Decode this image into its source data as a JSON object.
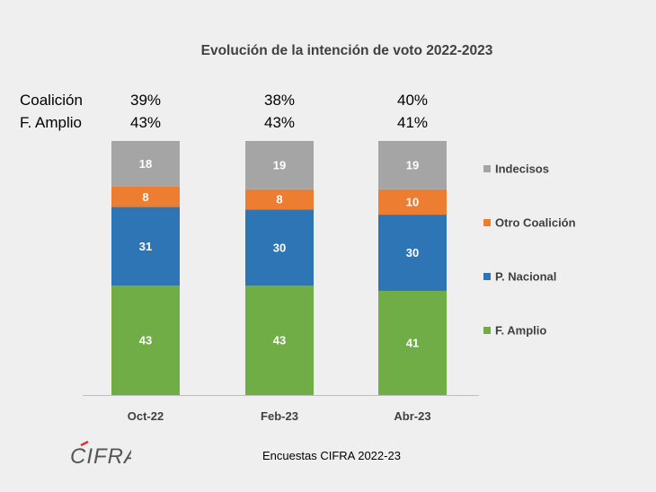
{
  "title": "Evolución de la intención de voto 2022-2023",
  "summary": {
    "rows": [
      {
        "label": "Coalición",
        "values": [
          "39%",
          "38%",
          "40%"
        ]
      },
      {
        "label": "F. Amplio",
        "values": [
          "43%",
          "43%",
          "41%"
        ]
      }
    ]
  },
  "footer": "Encuestas CIFRA 2022-23",
  "logo_text": "CIFRA",
  "chart_data": {
    "type": "bar",
    "stacked": true,
    "categories": [
      "Oct-22",
      "Feb-23",
      "Abr-23"
    ],
    "series": [
      {
        "name": "F. Amplio",
        "color": "#70ad47",
        "values": [
          43,
          43,
          41
        ]
      },
      {
        "name": "P. Nacional",
        "color": "#2e75b6",
        "values": [
          31,
          30,
          30
        ]
      },
      {
        "name": "Otro Coalición",
        "color": "#ed7d31",
        "values": [
          8,
          8,
          10
        ]
      },
      {
        "name": "Indecisos",
        "color": "#a5a5a5",
        "values": [
          18,
          19,
          19
        ]
      }
    ],
    "legend_order": [
      "Indecisos",
      "Otro Coalición",
      "P. Nacional",
      "F. Amplio"
    ],
    "legend_position": "right",
    "ylim": [
      0,
      100
    ],
    "grid": false,
    "xlabel": "",
    "ylabel": ""
  }
}
